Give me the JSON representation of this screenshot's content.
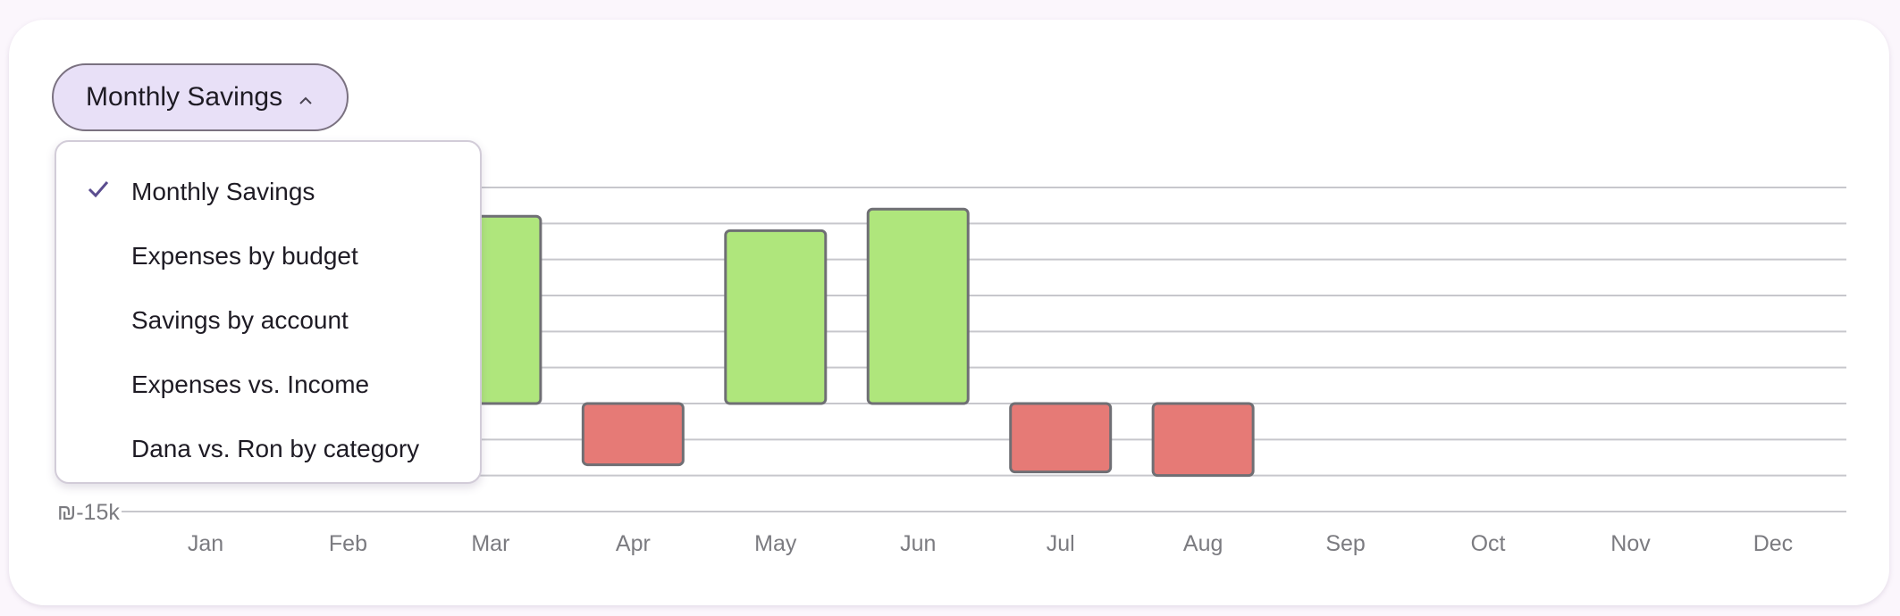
{
  "dropdown": {
    "selected": "Monthly Savings",
    "items": [
      {
        "label": "Monthly Savings",
        "checked": true
      },
      {
        "label": "Expenses by budget",
        "checked": false
      },
      {
        "label": "Savings by account",
        "checked": false
      },
      {
        "label": "Expenses vs. Income",
        "checked": false
      },
      {
        "label": "Dana vs. Ron by category",
        "checked": false
      }
    ],
    "expanded": true
  },
  "colors": {
    "positive": "#afe67c",
    "negative": "#e67a76",
    "accent": "#e8e0f7",
    "check": "#5b4d8f"
  },
  "chart_data": {
    "type": "bar",
    "categories": [
      "Jan",
      "Feb",
      "Mar",
      "Apr",
      "May",
      "Jun",
      "Jul",
      "Aug",
      "Sep",
      "Oct",
      "Nov",
      "Dec"
    ],
    "values": [
      null,
      null,
      26000,
      -8500,
      24000,
      27000,
      -9500,
      -10000,
      null,
      null,
      null,
      null
    ],
    "ylim": [
      -15000,
      30000
    ],
    "y_tick_step": 5000,
    "y_tick_labels": [
      "₪-15k"
    ],
    "grid": true,
    "legend": "none"
  }
}
